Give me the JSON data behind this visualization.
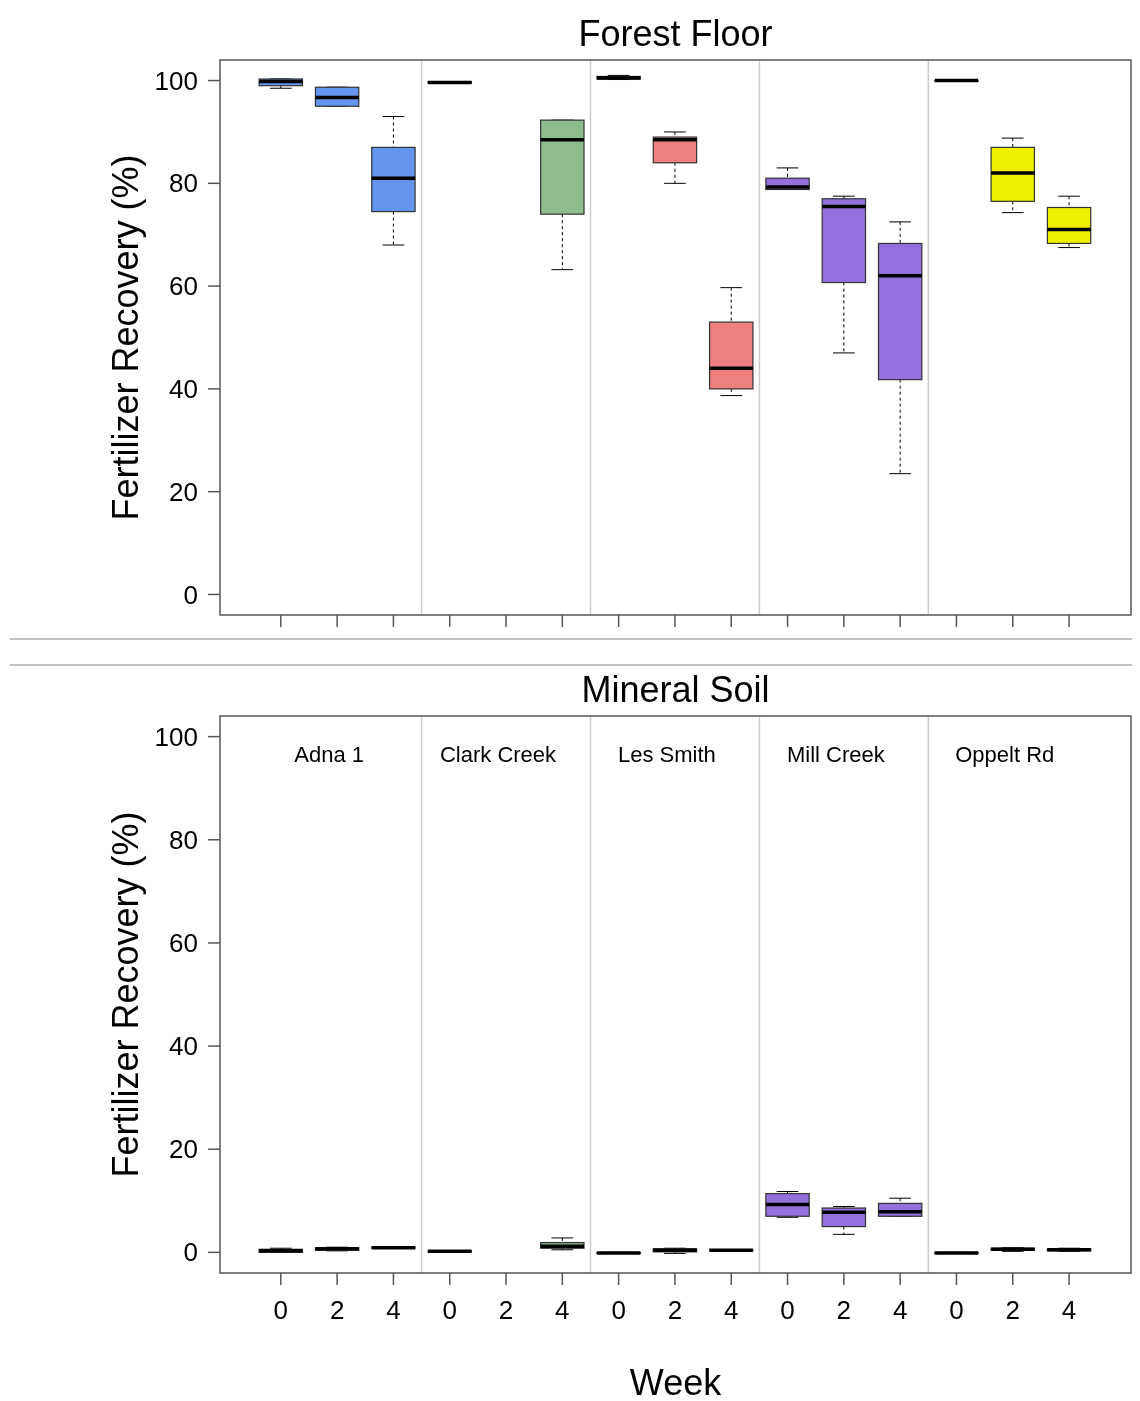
{
  "chart_data": [
    {
      "type": "box",
      "title": "Forest Floor",
      "ylabel": "Fertilizer Recovery (%)",
      "categories": [
        "0",
        "2",
        "4",
        "0",
        "2",
        "4",
        "0",
        "2",
        "4",
        "0",
        "2",
        "4",
        "0",
        "2",
        "4"
      ],
      "ylim": [
        -4,
        104
      ],
      "yticks": [
        0,
        20,
        40,
        60,
        80,
        100
      ],
      "grid": false,
      "tick_labels": "y",
      "series": [
        {
          "color": "#6495ed",
          "boxes": [
            {
              "low": 98.5,
              "q1": 99,
              "median": 99.8,
              "q3": 100.3,
              "high": 100.3
            },
            {
              "low": 95,
              "q1": 95,
              "median": 96.7,
              "q3": 98.7,
              "high": 98.7
            },
            {
              "low": 68,
              "q1": 74.5,
              "median": 81,
              "q3": 87,
              "high": 93
            },
            null,
            null,
            null,
            null,
            null,
            null,
            null,
            null,
            null,
            null,
            null,
            null
          ]
        },
        {
          "color": "#8fbc8f",
          "boxes": [
            null,
            null,
            null,
            {
              "low": 99.5,
              "q1": 99.5,
              "median": 99.6,
              "q3": 99.8,
              "high": 99.8
            },
            null,
            {
              "low": 63.2,
              "q1": 74,
              "median": 88.5,
              "q3": 92.3,
              "high": 92.3
            },
            null,
            null,
            null,
            null,
            null,
            null,
            null,
            null,
            null
          ]
        },
        {
          "color": "#f08080",
          "boxes": [
            null,
            null,
            null,
            null,
            null,
            null,
            {
              "low": 100.2,
              "q1": 100.3,
              "median": 100.5,
              "q3": 100.8,
              "high": 101
            },
            {
              "low": 80,
              "q1": 84,
              "median": 88.5,
              "q3": 89,
              "high": 90
            },
            {
              "low": 38.7,
              "q1": 40,
              "median": 44,
              "q3": 53,
              "high": 59.7
            },
            null,
            null,
            null,
            null,
            null,
            null
          ]
        },
        {
          "color": "#9370db",
          "boxes": [
            null,
            null,
            null,
            null,
            null,
            null,
            null,
            null,
            null,
            {
              "low": 78.8,
              "q1": 78.8,
              "median": 79.3,
              "q3": 81,
              "high": 83
            },
            {
              "low": 47,
              "q1": 60.7,
              "median": 75.5,
              "q3": 77,
              "high": 77.5
            },
            {
              "low": 23.5,
              "q1": 41.8,
              "median": 62,
              "q3": 68.3,
              "high": 72.5
            },
            null,
            null,
            null
          ]
        },
        {
          "color": "#eeee00",
          "boxes": [
            null,
            null,
            null,
            null,
            null,
            null,
            null,
            null,
            null,
            null,
            null,
            null,
            {
              "low": 100,
              "q1": 100,
              "median": 100,
              "q3": 100,
              "high": 100
            },
            {
              "low": 74.3,
              "q1": 76.5,
              "median": 82,
              "q3": 87,
              "high": 88.8
            },
            {
              "low": 67.5,
              "q1": 68.3,
              "median": 71,
              "q3": 75.3,
              "high": 77.5
            }
          ]
        }
      ]
    },
    {
      "type": "box",
      "title": "Mineral Soil",
      "xlabel": "Week",
      "ylabel": "Fertilizer Recovery (%)",
      "annotations": [
        "Adna 1",
        "Clark Creek",
        "Les Smith",
        "Mill Creek",
        "Oppelt Rd"
      ],
      "categories": [
        "0",
        "2",
        "4",
        "0",
        "2",
        "4",
        "0",
        "2",
        "4",
        "0",
        "2",
        "4",
        "0",
        "2",
        "4"
      ],
      "ylim": [
        -4,
        104
      ],
      "yticks": [
        0,
        20,
        40,
        60,
        80,
        100
      ],
      "grid": false,
      "series": [
        {
          "color": "#6495ed",
          "boxes": [
            {
              "low": 0,
              "q1": 0,
              "median": 0.3,
              "q3": 0.6,
              "high": 0.8
            },
            {
              "low": 0.3,
              "q1": 0.4,
              "median": 0.7,
              "q3": 0.9,
              "high": 1
            },
            {
              "low": 0.8,
              "q1": 0.8,
              "median": 0.9,
              "q3": 1,
              "high": 1
            },
            null,
            null,
            null,
            null,
            null,
            null,
            null,
            null,
            null,
            null,
            null,
            null
          ]
        },
        {
          "color": "#8fbc8f",
          "boxes": [
            null,
            null,
            null,
            {
              "low": 0.1,
              "q1": 0.1,
              "median": 0.2,
              "q3": 0.3,
              "high": 0.3
            },
            null,
            {
              "low": 0.5,
              "q1": 0.8,
              "median": 1.2,
              "q3": 1.9,
              "high": 2.8
            },
            null,
            null,
            null,
            null,
            null,
            null,
            null,
            null,
            null
          ]
        },
        {
          "color": "#f08080",
          "boxes": [
            null,
            null,
            null,
            null,
            null,
            null,
            {
              "low": -0.2,
              "q1": -0.2,
              "median": -0.1,
              "q3": 0,
              "high": 0
            },
            {
              "low": -0.2,
              "q1": 0.1,
              "median": 0.4,
              "q3": 0.7,
              "high": 0.8
            },
            {
              "low": 0.3,
              "q1": 0.3,
              "median": 0.4,
              "q3": 0.5,
              "high": 0.5
            },
            null,
            null,
            null,
            null,
            null,
            null
          ]
        },
        {
          "color": "#9370db",
          "boxes": [
            null,
            null,
            null,
            null,
            null,
            null,
            null,
            null,
            null,
            {
              "low": 6.8,
              "q1": 7,
              "median": 9.3,
              "q3": 11.4,
              "high": 11.8
            },
            {
              "low": 3.5,
              "q1": 5,
              "median": 7.8,
              "q3": 8.6,
              "high": 8.9
            },
            {
              "low": 7,
              "q1": 7,
              "median": 7.9,
              "q3": 9.5,
              "high": 10.5
            },
            null,
            null,
            null
          ]
        },
        {
          "color": "#eeee00",
          "boxes": [
            null,
            null,
            null,
            null,
            null,
            null,
            null,
            null,
            null,
            null,
            null,
            null,
            {
              "low": -0.2,
              "q1": -0.2,
              "median": -0.1,
              "q3": 0,
              "high": 0
            },
            {
              "low": 0.2,
              "q1": 0.4,
              "median": 0.6,
              "q3": 0.8,
              "high": 0.9
            },
            {
              "low": 0.2,
              "q1": 0.3,
              "median": 0.5,
              "q3": 0.7,
              "high": 0.8
            }
          ]
        }
      ]
    }
  ]
}
